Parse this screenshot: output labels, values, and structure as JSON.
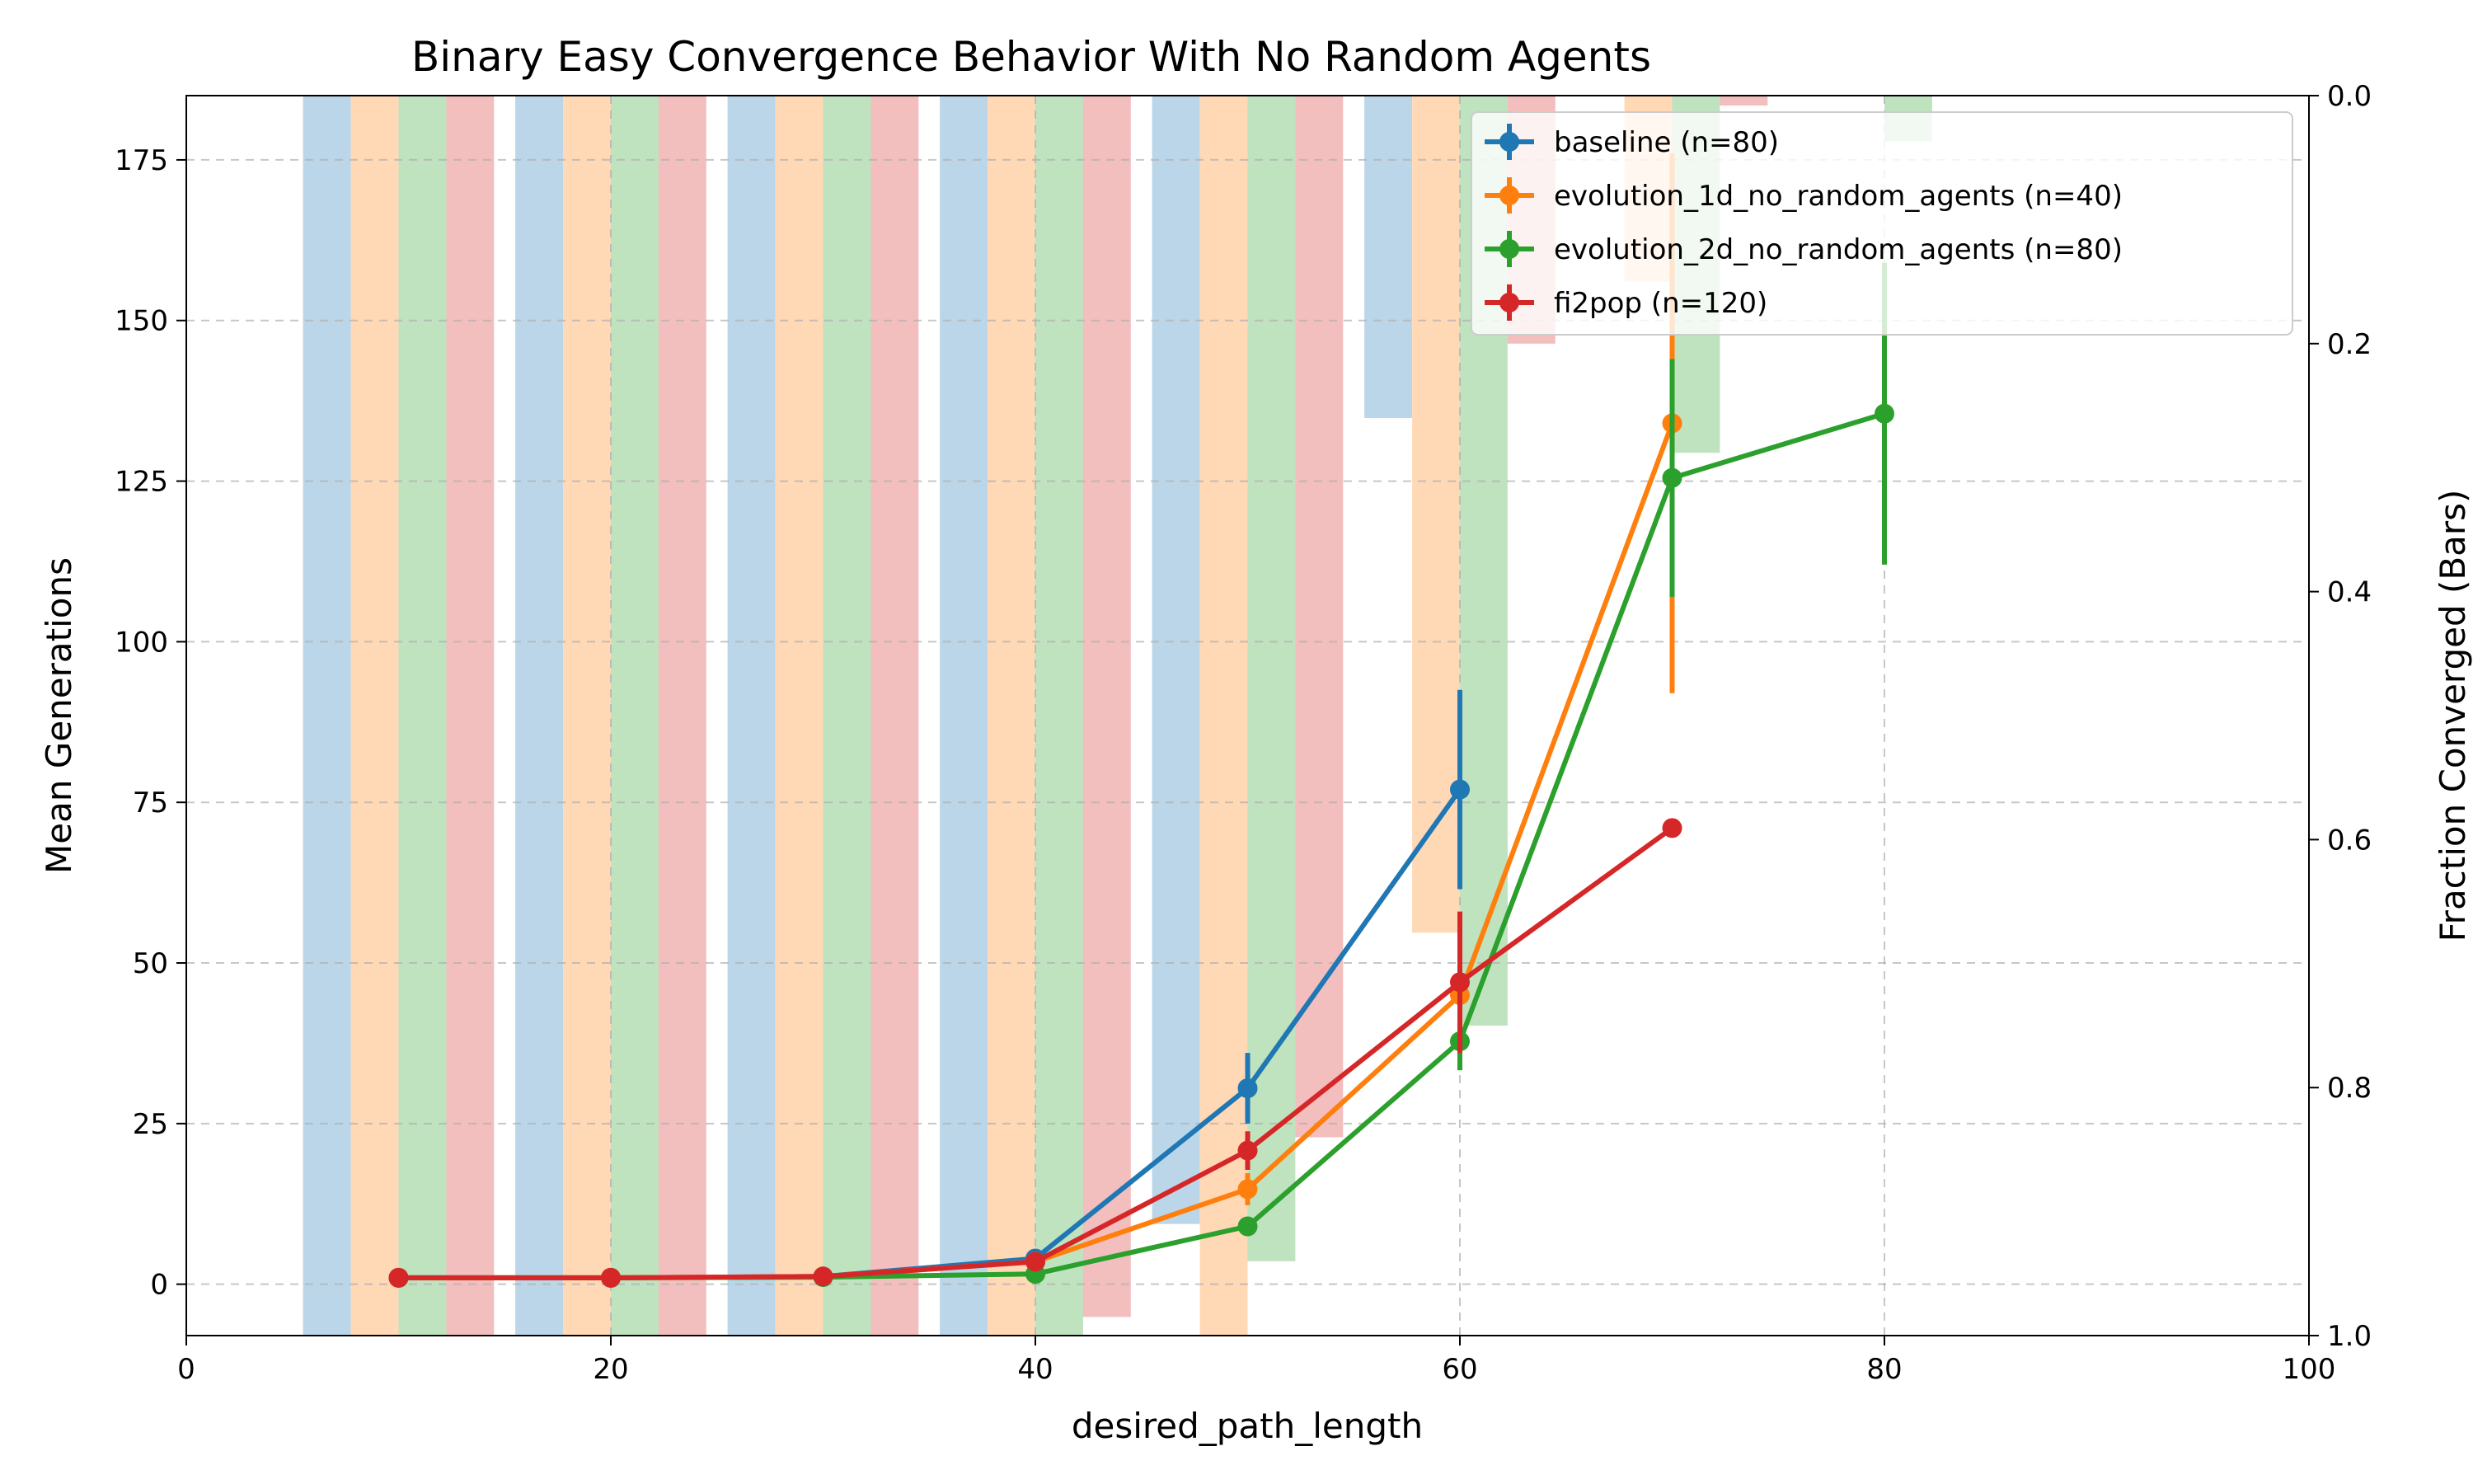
{
  "chart_data": {
    "type": "line",
    "title": "Binary Easy Convergence Behavior With No Random Agents",
    "xlabel": "desired_path_length",
    "ylabel": "Mean Generations",
    "ylabel_right": "Fraction Converged (Bars)",
    "xlim": [
      0,
      100
    ],
    "ylim": [
      -8,
      185
    ],
    "ylim_right": [
      1.0,
      0.0
    ],
    "x_ticks": [
      0,
      20,
      40,
      60,
      80,
      100
    ],
    "y_ticks": [
      0,
      25,
      50,
      75,
      100,
      125,
      150,
      175
    ],
    "y_ticks_right": [
      0.0,
      0.2,
      0.4,
      0.6,
      0.8,
      1.0
    ],
    "x_tick_labels": [
      "0",
      "20",
      "40",
      "60",
      "80",
      "100"
    ],
    "y_tick_labels": [
      "0",
      "25",
      "50",
      "75",
      "100",
      "125",
      "150",
      "175"
    ],
    "y_tick_labels_right": [
      "0.0",
      "0.2",
      "0.4",
      "0.6",
      "0.8",
      "1.0"
    ],
    "grid": true,
    "legend_position": "top-right",
    "series": [
      {
        "name": "baseline (n=80)",
        "color": "#1f77b4",
        "x": [
          10,
          20,
          30,
          40,
          50,
          60
        ],
        "y": [
          1.0,
          1.0,
          1.2,
          4.0,
          30.5,
          77.0
        ],
        "yerr": [
          0.3,
          0.3,
          0.3,
          0.8,
          5.5,
          15.5
        ],
        "bar_fraction": [
          1.0,
          1.0,
          1.0,
          1.0,
          0.91,
          0.26
        ]
      },
      {
        "name": "evolution_1d_no_random_agents (n=40)",
        "color": "#ff7f0e",
        "x": [
          10,
          20,
          30,
          40,
          50,
          60,
          70
        ],
        "y": [
          1.0,
          1.0,
          1.2,
          3.5,
          14.8,
          45.0,
          134.0
        ],
        "yerr": [
          0.3,
          0.3,
          0.3,
          0.7,
          2.5,
          7.0,
          42.0
        ],
        "bar_fraction": [
          1.0,
          1.0,
          1.0,
          1.0,
          1.0,
          0.675,
          0.15
        ]
      },
      {
        "name": "evolution_2d_no_random_agents (n=80)",
        "color": "#2ca02c",
        "x": [
          10,
          20,
          30,
          40,
          50,
          60,
          70,
          80
        ],
        "y": [
          1.0,
          1.0,
          1.1,
          1.6,
          9.0,
          37.8,
          125.5,
          135.5
        ],
        "yerr": [
          0.3,
          0.3,
          0.3,
          0.5,
          1.5,
          4.5,
          18.5,
          23.5
        ],
        "bar_fraction": [
          1.0,
          1.0,
          1.0,
          1.0,
          0.94,
          0.75,
          0.288,
          0.037
        ]
      },
      {
        "name": "fi2pop (n=120)",
        "color": "#d62728",
        "x": [
          10,
          20,
          30,
          40,
          50,
          60,
          70
        ],
        "y": [
          1.0,
          1.0,
          1.2,
          3.5,
          20.8,
          47.0,
          71.0
        ],
        "yerr": [
          0.3,
          0.3,
          0.3,
          0.7,
          3.0,
          11.0,
          0.0
        ],
        "bar_fraction": [
          1.0,
          1.0,
          1.0,
          0.985,
          0.84,
          0.2,
          0.008
        ]
      }
    ]
  }
}
